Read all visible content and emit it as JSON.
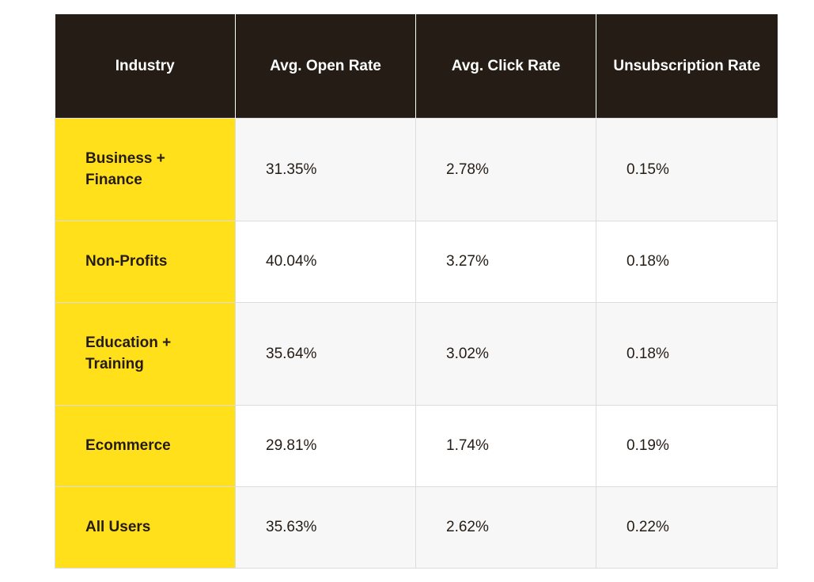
{
  "chart_data": {
    "type": "table",
    "columns": [
      "Industry",
      "Avg. Open Rate",
      "Avg. Click Rate",
      "Unsubscription Rate"
    ],
    "rows": [
      {
        "industry": "Business + Finance",
        "open_rate": "31.35%",
        "click_rate": "2.78%",
        "unsub_rate": "0.15%"
      },
      {
        "industry": "Non-Profits",
        "open_rate": "40.04%",
        "click_rate": "3.27%",
        "unsub_rate": "0.18%"
      },
      {
        "industry": "Education + Training",
        "open_rate": "35.64%",
        "click_rate": "3.02%",
        "unsub_rate": "0.18%"
      },
      {
        "industry": "Ecommerce",
        "open_rate": "29.81%",
        "click_rate": "1.74%",
        "unsub_rate": "0.19%"
      },
      {
        "industry": "All Users",
        "open_rate": "35.63%",
        "click_rate": "2.62%",
        "unsub_rate": "0.22%"
      }
    ]
  },
  "colors": {
    "header_bg": "#241c15",
    "header_text": "#ffffff",
    "industry_bg": "#ffe01b",
    "row_shade": "#f7f7f7",
    "border": "#dcdcdc"
  }
}
